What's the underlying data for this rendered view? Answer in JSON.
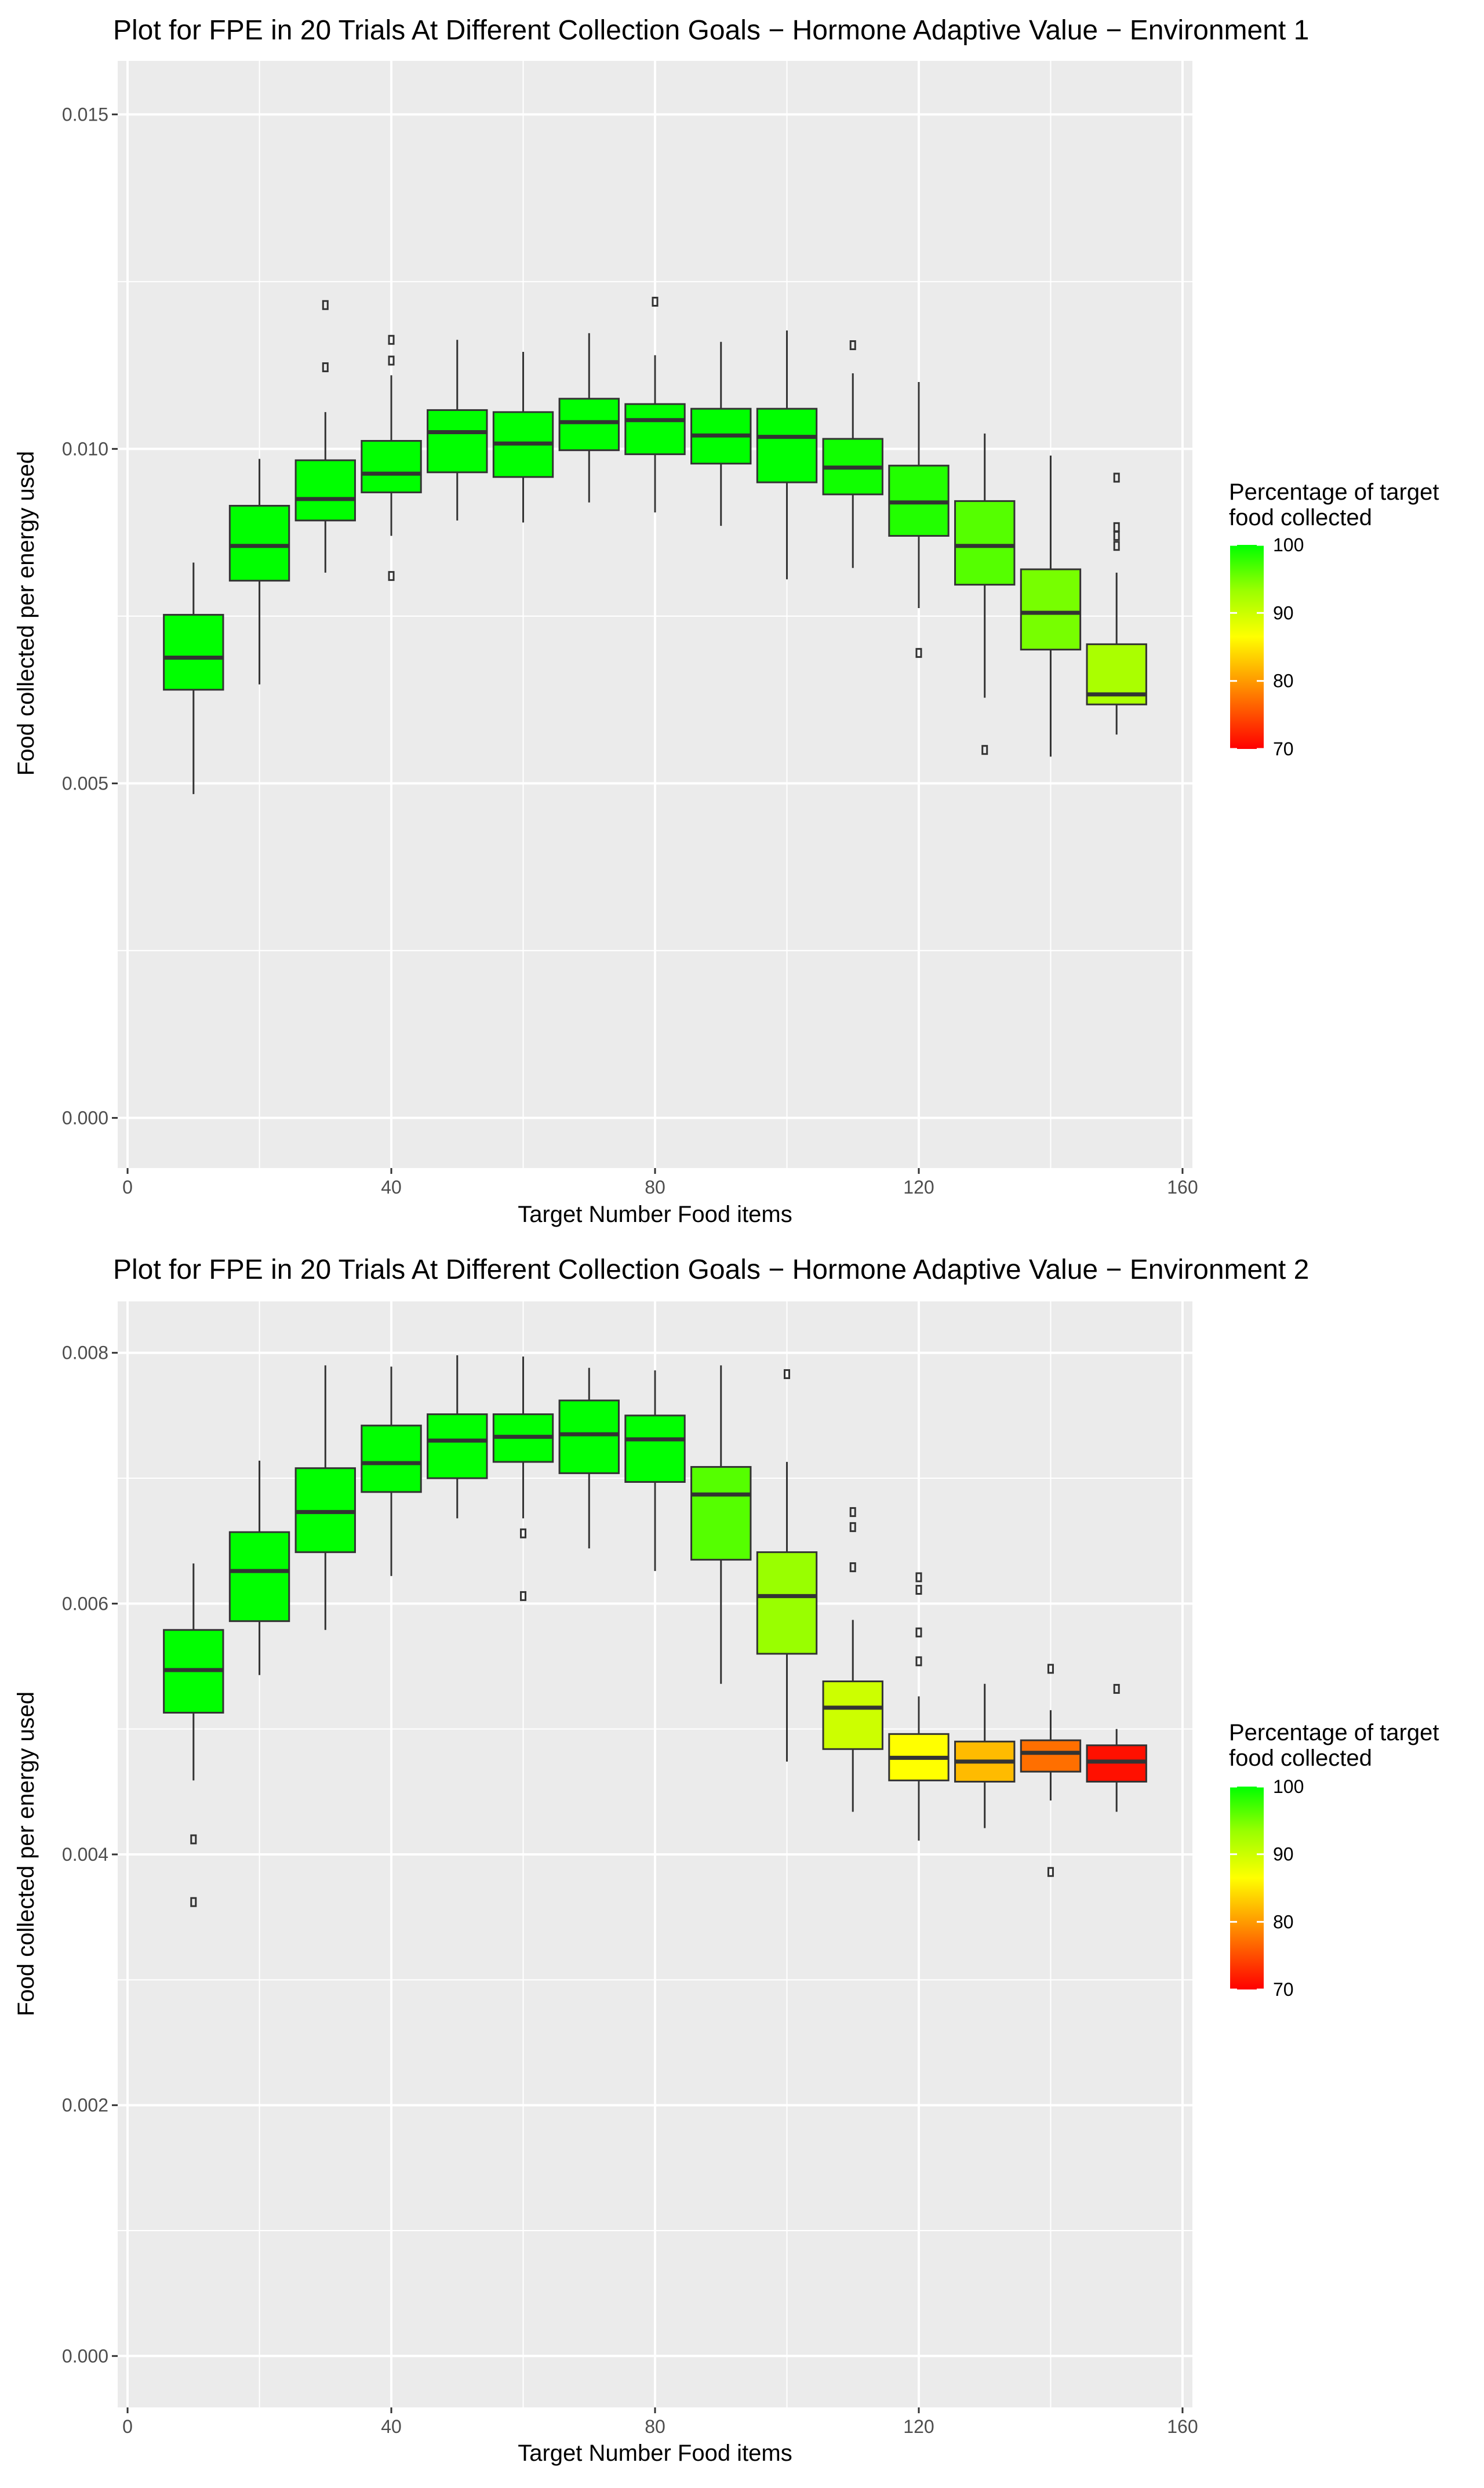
{
  "chart_data": [
    {
      "type": "box",
      "title": "Plot for FPE in 20 Trials At Different Collection Goals − Hormone Adaptive Value − Environment 1",
      "xlabel": "Target Number Food items",
      "ylabel": "Food collected per energy used",
      "xlim": [
        -1.5,
        161.5
      ],
      "ylim": [
        -0.00075,
        0.0158
      ],
      "xticks": [
        0,
        40,
        80,
        120,
        160
      ],
      "xtick_labels": [
        "0",
        "40",
        "80",
        "120",
        "160"
      ],
      "yticks": [
        0.0,
        0.005,
        0.01,
        0.015
      ],
      "ytick_labels": [
        "0.000",
        "0.005",
        "0.010",
        "0.015"
      ],
      "grid": true,
      "legend": {
        "title_lines": [
          "Percentage of target",
          "food collected"
        ],
        "position": "right",
        "range": [
          70,
          100
        ],
        "ticks": [
          70,
          80,
          90,
          100
        ],
        "tick_labels": [
          "70",
          "80",
          "90",
          "100"
        ]
      },
      "boxes": [
        {
          "x": 10,
          "whisker_low": 0.00484,
          "q1": 0.0064,
          "median": 0.00688,
          "q3": 0.00752,
          "whisker_high": 0.0083,
          "outliers": [],
          "pct": 100,
          "color": "#00ff00"
        },
        {
          "x": 20,
          "whisker_low": 0.00648,
          "q1": 0.00803,
          "median": 0.00855,
          "q3": 0.00915,
          "whisker_high": 0.00985,
          "outliers": [],
          "pct": 100,
          "color": "#00ff00"
        },
        {
          "x": 30,
          "whisker_low": 0.00815,
          "q1": 0.00893,
          "median": 0.00925,
          "q3": 0.00983,
          "whisker_high": 0.01055,
          "outliers": [
            0.01122,
            0.01215
          ],
          "pct": 100,
          "color": "#00ff00"
        },
        {
          "x": 40,
          "whisker_low": 0.0087,
          "q1": 0.00935,
          "median": 0.00963,
          "q3": 0.01012,
          "whisker_high": 0.0111,
          "outliers": [
            0.0081,
            0.01132,
            0.01163
          ],
          "pct": 100,
          "color": "#00ff00"
        },
        {
          "x": 50,
          "whisker_low": 0.00893,
          "q1": 0.00965,
          "median": 0.01025,
          "q3": 0.01058,
          "whisker_high": 0.01163,
          "outliers": [],
          "pct": 100,
          "color": "#00ff00"
        },
        {
          "x": 60,
          "whisker_low": 0.0089,
          "q1": 0.00958,
          "median": 0.01008,
          "q3": 0.01055,
          "whisker_high": 0.01145,
          "outliers": [],
          "pct": 100,
          "color": "#00ff00"
        },
        {
          "x": 70,
          "whisker_low": 0.0092,
          "q1": 0.00998,
          "median": 0.0104,
          "q3": 0.01075,
          "whisker_high": 0.01173,
          "outliers": [],
          "pct": 100,
          "color": "#00ff00"
        },
        {
          "x": 80,
          "whisker_low": 0.00905,
          "q1": 0.00992,
          "median": 0.01043,
          "q3": 0.01067,
          "whisker_high": 0.0114,
          "outliers": [
            0.0122
          ],
          "pct": 100,
          "color": "#00ff00"
        },
        {
          "x": 90,
          "whisker_low": 0.00885,
          "q1": 0.00978,
          "median": 0.0102,
          "q3": 0.0106,
          "whisker_high": 0.0116,
          "outliers": [],
          "pct": 100,
          "color": "#00ff00"
        },
        {
          "x": 100,
          "whisker_low": 0.00805,
          "q1": 0.0095,
          "median": 0.01018,
          "q3": 0.0106,
          "whisker_high": 0.01177,
          "outliers": [],
          "pct": 100,
          "color": "#00ff00"
        },
        {
          "x": 110,
          "whisker_low": 0.00822,
          "q1": 0.00932,
          "median": 0.00972,
          "q3": 0.01015,
          "whisker_high": 0.01113,
          "outliers": [
            0.01155
          ],
          "pct": 100,
          "color": "#10ff00"
        },
        {
          "x": 120,
          "whisker_low": 0.00762,
          "q1": 0.0087,
          "median": 0.0092,
          "q3": 0.00975,
          "whisker_high": 0.011,
          "outliers": [
            0.00695
          ],
          "pct": 99,
          "color": "#22ff00"
        },
        {
          "x": 130,
          "whisker_low": 0.00628,
          "q1": 0.00797,
          "median": 0.00855,
          "q3": 0.00922,
          "whisker_high": 0.01023,
          "outliers": [
            0.0055
          ],
          "pct": 97,
          "color": "#55ff00"
        },
        {
          "x": 140,
          "whisker_low": 0.0054,
          "q1": 0.007,
          "median": 0.00755,
          "q3": 0.0082,
          "whisker_high": 0.0099,
          "outliers": [],
          "pct": 95,
          "color": "#77ff00"
        },
        {
          "x": 150,
          "whisker_low": 0.00573,
          "q1": 0.00618,
          "median": 0.00633,
          "q3": 0.00708,
          "whisker_high": 0.00815,
          "outliers": [
            0.00855,
            0.0087,
            0.00883,
            0.00957
          ],
          "pct": 92,
          "color": "#aaff00"
        }
      ]
    },
    {
      "type": "box",
      "title": "Plot for FPE in 20 Trials At Different Collection Goals − Hormone Adaptive Value − Environment 2",
      "xlabel": "Target Number Food items",
      "ylabel": "Food collected per energy used",
      "xlim": [
        -1.5,
        161.5
      ],
      "ylim": [
        -0.00041,
        0.00841
      ],
      "xticks": [
        0,
        40,
        80,
        120,
        160
      ],
      "xtick_labels": [
        "0",
        "40",
        "80",
        "120",
        "160"
      ],
      "yticks": [
        0.0,
        0.002,
        0.004,
        0.006,
        0.008
      ],
      "ytick_labels": [
        "0.000",
        "0.002",
        "0.004",
        "0.006",
        "0.008"
      ],
      "grid": true,
      "legend": {
        "title_lines": [
          "Percentage of target",
          "food collected"
        ],
        "position": "right",
        "range": [
          70,
          100
        ],
        "ticks": [
          70,
          80,
          90,
          100
        ],
        "tick_labels": [
          "70",
          "80",
          "90",
          "100"
        ]
      },
      "boxes": [
        {
          "x": 10,
          "whisker_low": 0.00459,
          "q1": 0.00513,
          "median": 0.00547,
          "q3": 0.00579,
          "whisker_high": 0.00632,
          "outliers": [
            0.00362,
            0.00412
          ],
          "pct": 100,
          "color": "#00ff00"
        },
        {
          "x": 20,
          "whisker_low": 0.00543,
          "q1": 0.00586,
          "median": 0.00626,
          "q3": 0.00657,
          "whisker_high": 0.00714,
          "outliers": [],
          "pct": 100,
          "color": "#00ff00"
        },
        {
          "x": 30,
          "whisker_low": 0.00579,
          "q1": 0.00641,
          "median": 0.00673,
          "q3": 0.00708,
          "whisker_high": 0.0079,
          "outliers": [],
          "pct": 100,
          "color": "#00ff00"
        },
        {
          "x": 40,
          "whisker_low": 0.00622,
          "q1": 0.00689,
          "median": 0.00712,
          "q3": 0.00742,
          "whisker_high": 0.00789,
          "outliers": [],
          "pct": 100,
          "color": "#00ff00"
        },
        {
          "x": 50,
          "whisker_low": 0.00668,
          "q1": 0.007,
          "median": 0.0073,
          "q3": 0.00751,
          "whisker_high": 0.00798,
          "outliers": [],
          "pct": 100,
          "color": "#00ff00"
        },
        {
          "x": 60,
          "whisker_low": 0.00668,
          "q1": 0.00713,
          "median": 0.00733,
          "q3": 0.00751,
          "whisker_high": 0.00797,
          "outliers": [
            0.00606,
            0.00656
          ],
          "pct": 100,
          "color": "#00ff00"
        },
        {
          "x": 70,
          "whisker_low": 0.00644,
          "q1": 0.00704,
          "median": 0.00735,
          "q3": 0.00762,
          "whisker_high": 0.00788,
          "outliers": [],
          "pct": 100,
          "color": "#00ff00"
        },
        {
          "x": 80,
          "whisker_low": 0.00626,
          "q1": 0.00697,
          "median": 0.00731,
          "q3": 0.0075,
          "whisker_high": 0.00786,
          "outliers": [],
          "pct": 100,
          "color": "#00ff00"
        },
        {
          "x": 90,
          "whisker_low": 0.00536,
          "q1": 0.00635,
          "median": 0.00687,
          "q3": 0.00709,
          "whisker_high": 0.0079,
          "outliers": [],
          "pct": 96,
          "color": "#55ff00"
        },
        {
          "x": 100,
          "whisker_low": 0.00474,
          "q1": 0.0056,
          "median": 0.00606,
          "q3": 0.00641,
          "whisker_high": 0.00713,
          "outliers": [
            0.00783
          ],
          "pct": 92,
          "color": "#99ff00"
        },
        {
          "x": 110,
          "whisker_low": 0.00434,
          "q1": 0.00484,
          "median": 0.00517,
          "q3": 0.00538,
          "whisker_high": 0.00587,
          "outliers": [
            0.00629,
            0.00661,
            0.00673
          ],
          "pct": 88,
          "color": "#ccff00"
        },
        {
          "x": 120,
          "whisker_low": 0.00411,
          "q1": 0.00459,
          "median": 0.00477,
          "q3": 0.00496,
          "whisker_high": 0.00526,
          "outliers": [
            0.00554,
            0.00577,
            0.00611,
            0.00621
          ],
          "pct": 85,
          "color": "#ffff00"
        },
        {
          "x": 130,
          "whisker_low": 0.00421,
          "q1": 0.00458,
          "median": 0.00474,
          "q3": 0.0049,
          "whisker_high": 0.00536,
          "outliers": [],
          "pct": 79,
          "color": "#ffbb00"
        },
        {
          "x": 140,
          "whisker_low": 0.00443,
          "q1": 0.00466,
          "median": 0.00481,
          "q3": 0.00491,
          "whisker_high": 0.00515,
          "outliers": [
            0.00386,
            0.00548
          ],
          "pct": 75,
          "color": "#ff6f00"
        },
        {
          "x": 150,
          "whisker_low": 0.00434,
          "q1": 0.00458,
          "median": 0.00474,
          "q3": 0.00487,
          "whisker_high": 0.005,
          "outliers": [
            0.00532
          ],
          "pct": 71,
          "color": "#ff1000"
        }
      ]
    }
  ]
}
